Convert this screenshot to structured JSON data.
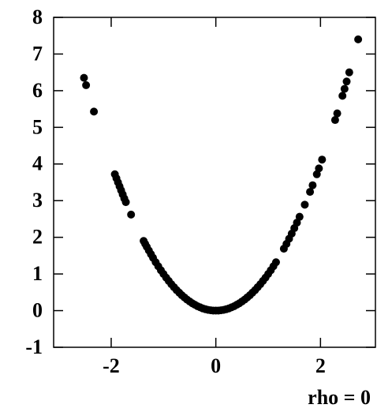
{
  "chart_data": {
    "type": "scatter",
    "x_label": "rho = 0",
    "color": "#000000",
    "x": [
      -2.52,
      -2.48,
      -2.33,
      -1.93,
      -1.9,
      -1.87,
      -1.84,
      -1.81,
      -1.78,
      -1.75,
      -1.72,
      -1.62,
      -1.38,
      -1.35,
      -1.32,
      -1.28,
      -1.24,
      -1.2,
      -1.15,
      -1.1,
      -1.05,
      -1.0,
      -0.95,
      -0.9,
      -0.85,
      -0.8,
      -0.75,
      -0.7,
      -0.65,
      -0.6,
      -0.55,
      -0.5,
      -0.45,
      -0.4,
      -0.35,
      -0.3,
      -0.25,
      -0.2,
      -0.15,
      -0.1,
      -0.05,
      0,
      0.05,
      0.1,
      0.15,
      0.2,
      0.25,
      0.3,
      0.35,
      0.4,
      0.45,
      0.5,
      0.55,
      0.6,
      0.65,
      0.7,
      0.75,
      0.8,
      0.85,
      0.9,
      0.95,
      1.0,
      1.05,
      1.1,
      1.15,
      1.3,
      1.35,
      1.4,
      1.45,
      1.5,
      1.55,
      1.6,
      1.7,
      1.8,
      1.85,
      1.93,
      1.97,
      2.03,
      2.28,
      2.32,
      2.42,
      2.46,
      2.5,
      2.55,
      2.72
    ],
    "values": [
      6.35,
      6.15,
      5.43,
      3.72,
      3.61,
      3.5,
      3.39,
      3.28,
      3.17,
      3.06,
      2.96,
      2.62,
      1.9,
      1.82,
      1.74,
      1.64,
      1.54,
      1.44,
      1.32,
      1.21,
      1.1,
      1,
      0.9,
      0.81,
      0.72,
      0.64,
      0.56,
      0.49,
      0.42,
      0.36,
      0.3,
      0.25,
      0.2,
      0.16,
      0.12,
      0.09,
      0.06,
      0.04,
      0.02,
      0.01,
      0,
      0,
      0,
      0.01,
      0.02,
      0.04,
      0.06,
      0.09,
      0.12,
      0.16,
      0.2,
      0.25,
      0.3,
      0.36,
      0.42,
      0.49,
      0.56,
      0.64,
      0.72,
      0.81,
      0.9,
      1,
      1.1,
      1.21,
      1.32,
      1.69,
      1.82,
      1.96,
      2.1,
      2.25,
      2.4,
      2.56,
      2.89,
      3.24,
      3.42,
      3.72,
      3.88,
      4.12,
      5.2,
      5.38,
      5.86,
      6.05,
      6.25,
      6.5,
      7.4
    ],
    "xlim": [
      -3.1,
      3.05
    ],
    "ylim": [
      -1,
      8
    ],
    "xticks": [
      -2,
      0,
      2
    ],
    "yticks": [
      -1,
      0,
      1,
      2,
      3,
      4,
      5,
      6,
      7,
      8
    ]
  }
}
